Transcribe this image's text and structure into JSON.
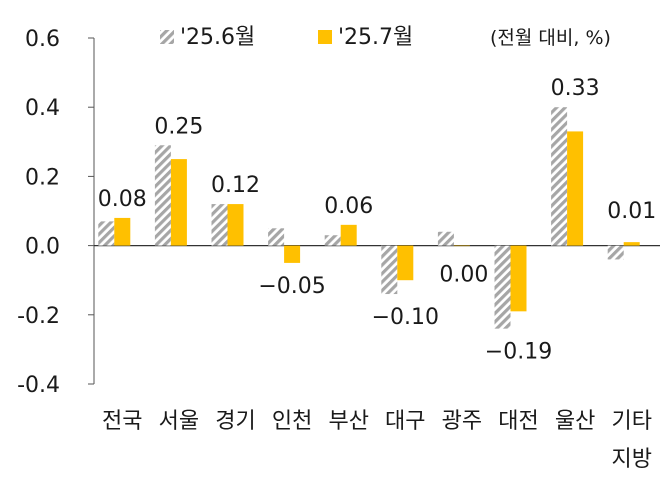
{
  "chart_data": {
    "type": "bar",
    "title": "",
    "unit_note": "(전월 대비, %)",
    "xlabel": "",
    "ylabel": "",
    "ylim": [
      -0.4,
      0.6
    ],
    "yticks": [
      {
        "value": 0.6,
        "label": "0.6"
      },
      {
        "value": 0.4,
        "label": "0.4"
      },
      {
        "value": 0.2,
        "label": "0.2"
      },
      {
        "value": 0.0,
        "label": "0.0"
      },
      {
        "value": -0.2,
        "label": "-0.2"
      },
      {
        "value": -0.4,
        "label": "-0.4"
      }
    ],
    "categories": [
      "전국",
      "서울",
      "경기",
      "인천",
      "부산",
      "대구",
      "광주",
      "대전",
      "울산",
      "기타 지방"
    ],
    "category_lines": [
      [
        "전국"
      ],
      [
        "서울"
      ],
      [
        "경기"
      ],
      [
        "인천"
      ],
      [
        "부산"
      ],
      [
        "대구"
      ],
      [
        "광주"
      ],
      [
        "대전"
      ],
      [
        "울산"
      ],
      [
        "기타",
        "지방"
      ]
    ],
    "series": [
      {
        "name": "'25.6월",
        "pattern": "hatched",
        "color": "#a6a6a6",
        "values": [
          0.07,
          0.29,
          0.12,
          0.05,
          0.03,
          -0.14,
          0.04,
          -0.24,
          0.4,
          -0.04
        ]
      },
      {
        "name": "'25.7월",
        "pattern": "solid",
        "color": "#ffc000",
        "values": [
          0.08,
          0.25,
          0.12,
          -0.05,
          0.06,
          -0.1,
          0.0,
          -0.19,
          0.33,
          0.01
        ]
      }
    ],
    "data_labels": [
      "0.08",
      "0.25",
      "0.12",
      "−0.05",
      "0.06",
      "−0.10",
      "0.00",
      "−0.19",
      "0.33",
      "0.01"
    ],
    "legend_position": "top"
  }
}
